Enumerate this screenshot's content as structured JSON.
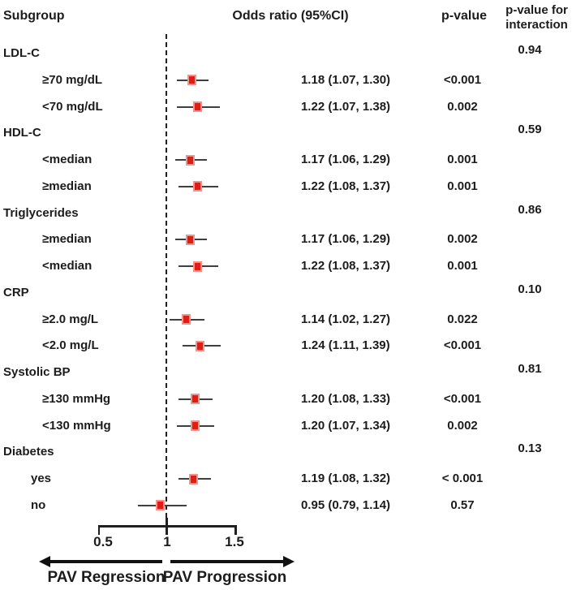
{
  "header": {
    "subgroup": "Subgroup",
    "or_ci": "Odds ratio (95%CI)",
    "p_value": "p-value",
    "p_interaction_line1": "p-value for",
    "p_interaction_line2": "interaction"
  },
  "axis": {
    "tick_labels": [
      "0.5",
      "1",
      "1.5"
    ],
    "tick_values": [
      0.5,
      1,
      1.5
    ],
    "left_arrow_label": "PAV Regression",
    "right_arrow_label": "PAV Progression"
  },
  "colors": {
    "marker_fill": "#e01d15",
    "marker_edge": "#f2948c",
    "ci_line": "#3f3f3f",
    "text": "#1c1c1c"
  },
  "chart_data": {
    "type": "forest",
    "x_reference_line": 1,
    "x_ticks": [
      0.5,
      1,
      1.5
    ],
    "x_range": [
      0.5,
      1.5
    ],
    "columns": [
      "Subgroup",
      "Odds ratio (95%CI)",
      "p-value",
      "p-value for interaction"
    ],
    "rows": [
      {
        "kind": "category",
        "label": "LDL-C",
        "interaction_p": "0.94"
      },
      {
        "kind": "item",
        "label": "≥70 mg/dL",
        "or": 1.18,
        "ci_low": 1.07,
        "ci_high": 1.3,
        "or_text": "1.18 (1.07, 1.30)",
        "p": "<0.001"
      },
      {
        "kind": "item",
        "label": "<70 mg/dL",
        "or": 1.22,
        "ci_low": 1.07,
        "ci_high": 1.38,
        "or_text": "1.22 (1.07, 1.38)",
        "p": "0.002"
      },
      {
        "kind": "category",
        "label": "HDL-C",
        "interaction_p": "0.59"
      },
      {
        "kind": "item",
        "label": "<median",
        "or": 1.17,
        "ci_low": 1.06,
        "ci_high": 1.29,
        "or_text": "1.17 (1.06, 1.29)",
        "p": "0.001"
      },
      {
        "kind": "item",
        "label": "≥median",
        "or": 1.22,
        "ci_low": 1.08,
        "ci_high": 1.37,
        "or_text": "1.22 (1.08, 1.37)",
        "p": "0.001"
      },
      {
        "kind": "category",
        "label": "Triglycerides",
        "interaction_p": "0.86"
      },
      {
        "kind": "item",
        "label": "≥median",
        "or": 1.17,
        "ci_low": 1.06,
        "ci_high": 1.29,
        "or_text": "1.17 (1.06, 1.29)",
        "p": "0.002"
      },
      {
        "kind": "item",
        "label": "<median",
        "or": 1.22,
        "ci_low": 1.08,
        "ci_high": 1.37,
        "or_text": "1.22 (1.08, 1.37)",
        "p": "0.001"
      },
      {
        "kind": "category",
        "label": "CRP",
        "interaction_p": "0.10"
      },
      {
        "kind": "item",
        "label": "≥2.0 mg/L",
        "or": 1.14,
        "ci_low": 1.02,
        "ci_high": 1.27,
        "or_text": "1.14 (1.02, 1.27)",
        "p": "0.022"
      },
      {
        "kind": "item",
        "label": "<2.0 mg/L",
        "or": 1.24,
        "ci_low": 1.11,
        "ci_high": 1.39,
        "or_text": "1.24 (1.11, 1.39)",
        "p": "<0.001"
      },
      {
        "kind": "category",
        "label": "Systolic BP",
        "interaction_p": "0.81"
      },
      {
        "kind": "item",
        "label": "≥130 mmHg",
        "or": 1.2,
        "ci_low": 1.08,
        "ci_high": 1.33,
        "or_text": "1.20 (1.08, 1.33)",
        "p": "<0.001"
      },
      {
        "kind": "item",
        "label": "<130 mmHg",
        "or": 1.2,
        "ci_low": 1.07,
        "ci_high": 1.34,
        "or_text": "1.20 (1.07, 1.34)",
        "p": "0.002"
      },
      {
        "kind": "category",
        "label": "Diabetes",
        "interaction_p": "0.13"
      },
      {
        "kind": "item",
        "label": "yes",
        "short_indent": true,
        "or": 1.19,
        "ci_low": 1.08,
        "ci_high": 1.32,
        "or_text": "1.19 (1.08, 1.32)",
        "p": "< 0.001"
      },
      {
        "kind": "item",
        "label": "no",
        "short_indent": true,
        "or": 0.95,
        "ci_low": 0.79,
        "ci_high": 1.14,
        "or_text": "0.95 (0.79, 1.14)",
        "p": "0.57"
      }
    ]
  }
}
